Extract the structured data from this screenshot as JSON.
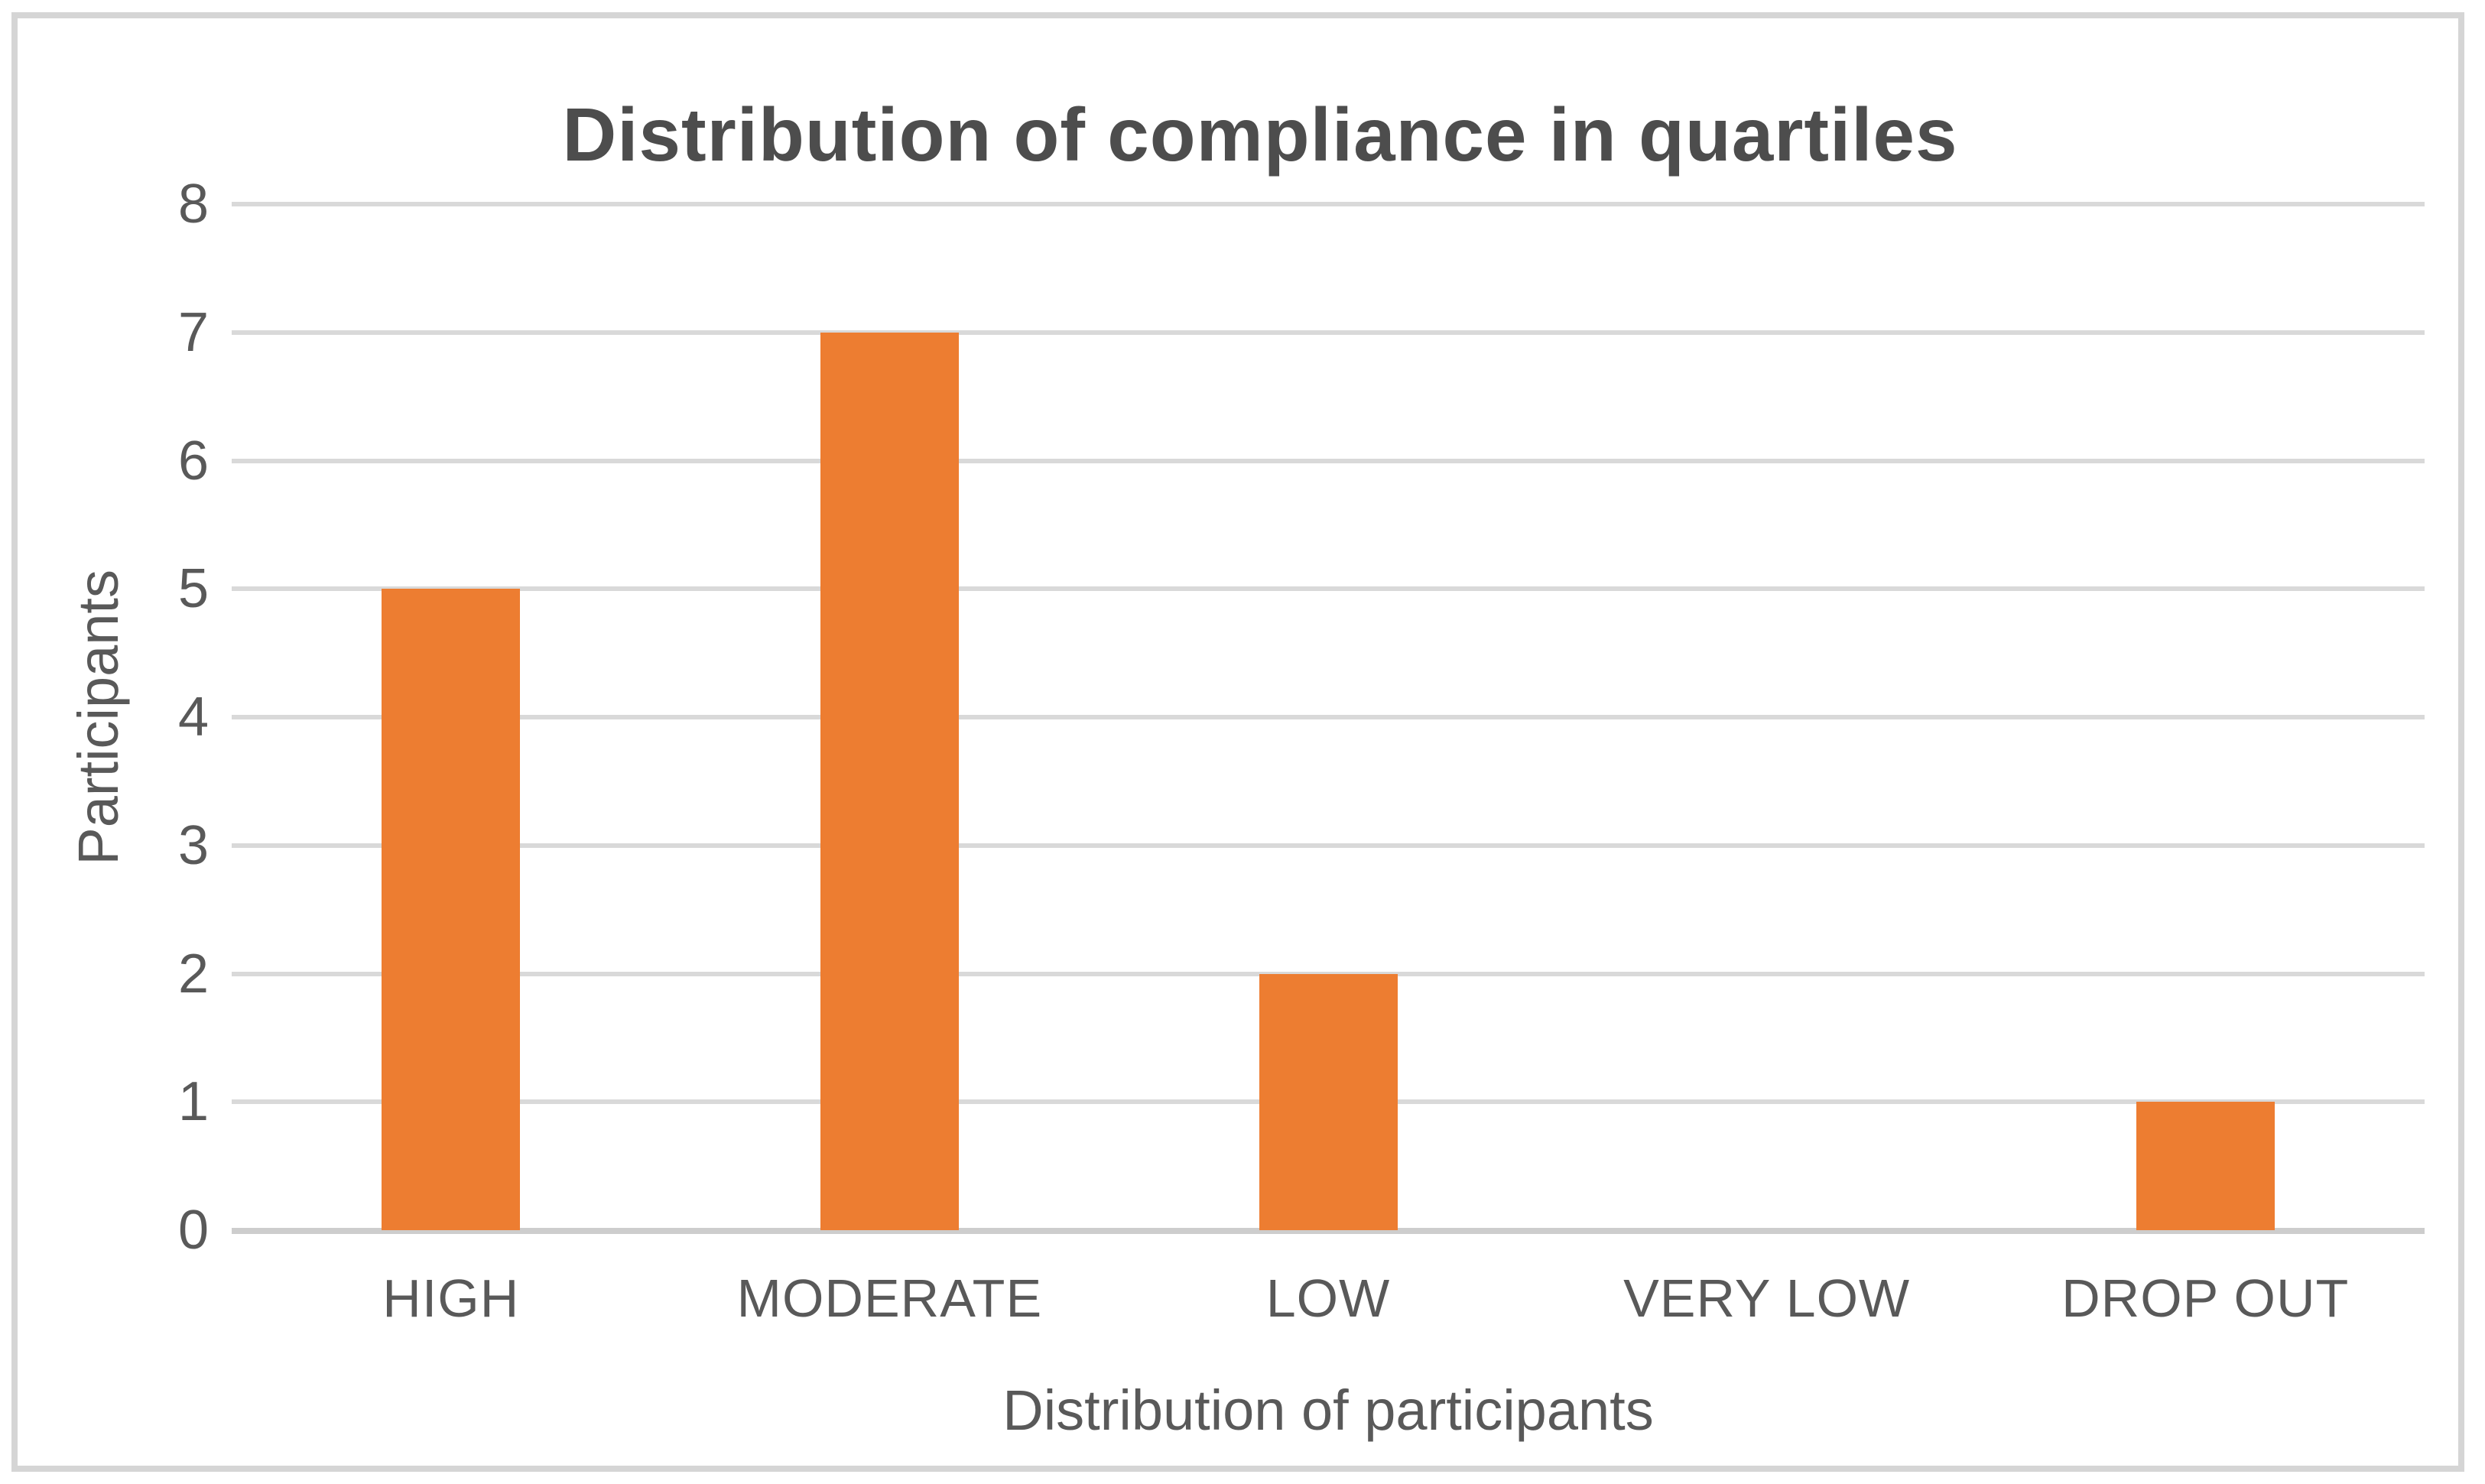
{
  "chart_data": {
    "type": "bar",
    "title": "Distribution of compliance in quartiles",
    "categories": [
      "HIGH",
      "MODERATE",
      "LOW",
      "VERY LOW",
      "DROP OUT"
    ],
    "values": [
      5,
      7,
      2,
      0,
      1
    ],
    "xlabel": "Distribution of participants",
    "ylabel": "Participants",
    "ylim": [
      0,
      8
    ],
    "ytick_step": 1,
    "ytick_labels": [
      "0",
      "1",
      "2",
      "3",
      "4",
      "5",
      "6",
      "7",
      "8"
    ],
    "grid": true,
    "legend": "none",
    "colors": {
      "bar": "#ED7D31",
      "gridline": "#D9D9D9",
      "axis_line": "#CDCDCD",
      "label_text": "#595959",
      "title_text": "#4D4D4D",
      "frame_border": "#D5D5D5",
      "background": "#FFFFFF"
    }
  }
}
